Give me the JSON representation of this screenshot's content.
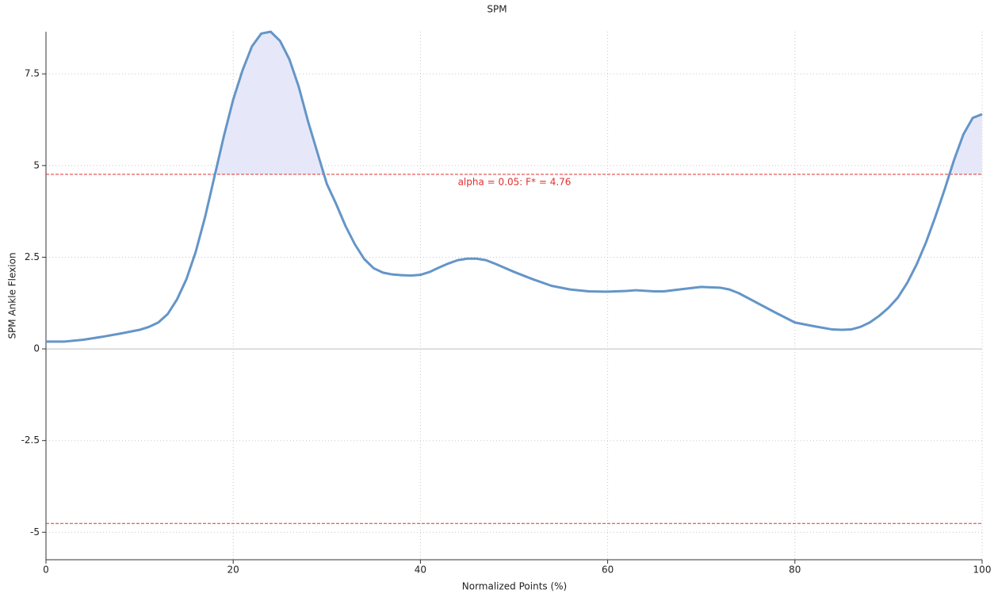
{
  "chart_data": {
    "type": "line",
    "title": "SPM",
    "x_label": "Normalized Points (%)",
    "y_label": "SPM Ankle Flexion",
    "x": [
      0,
      2,
      4,
      6,
      8,
      10,
      11,
      12,
      13,
      14,
      15,
      16,
      17,
      18,
      19,
      20,
      21,
      22,
      23,
      24,
      25,
      26,
      27,
      28,
      29,
      30,
      31,
      32,
      33,
      34,
      35,
      36,
      37,
      38,
      39,
      40,
      41,
      42,
      43,
      44,
      45,
      46,
      47,
      48,
      50,
      52,
      54,
      56,
      58,
      60,
      62,
      63,
      65,
      66,
      68,
      70,
      72,
      73,
      74,
      76,
      78,
      80,
      82,
      84,
      85,
      86,
      87,
      88,
      89,
      90,
      91,
      92,
      93,
      94,
      95,
      96,
      97,
      98,
      99,
      100
    ],
    "series": [
      {
        "name": "SPM",
        "color": "#6495c8",
        "values": [
          0.2,
          0.2,
          0.25,
          0.33,
          0.42,
          0.52,
          0.6,
          0.72,
          0.95,
          1.35,
          1.9,
          2.65,
          3.6,
          4.7,
          5.8,
          6.8,
          7.6,
          8.25,
          8.6,
          8.65,
          8.4,
          7.9,
          7.15,
          6.2,
          5.35,
          4.5,
          3.95,
          3.35,
          2.85,
          2.45,
          2.2,
          2.08,
          2.03,
          2.01,
          2.0,
          2.02,
          2.1,
          2.22,
          2.33,
          2.42,
          2.46,
          2.46,
          2.42,
          2.32,
          2.1,
          1.9,
          1.72,
          1.62,
          1.57,
          1.56,
          1.58,
          1.6,
          1.57,
          1.57,
          1.63,
          1.69,
          1.67,
          1.62,
          1.52,
          1.25,
          0.98,
          0.72,
          0.62,
          0.53,
          0.52,
          0.53,
          0.6,
          0.72,
          0.9,
          1.12,
          1.4,
          1.8,
          2.3,
          2.9,
          3.6,
          4.35,
          5.15,
          5.85,
          6.3,
          6.4
        ]
      }
    ],
    "thresholds": [
      4.76,
      -4.76
    ],
    "threshold_color": "#e03030",
    "fill_color": "#e6e8fa",
    "annotation": "alpha = 0.05: F* = 4.76",
    "xlim": [
      0,
      100
    ],
    "xticks": [
      0,
      20,
      40,
      60,
      80,
      100
    ],
    "ylim": [
      -5.75,
      8.65
    ],
    "yticks": [
      -5,
      -2.5,
      0,
      2.5,
      5,
      7.5
    ],
    "grid": true
  }
}
